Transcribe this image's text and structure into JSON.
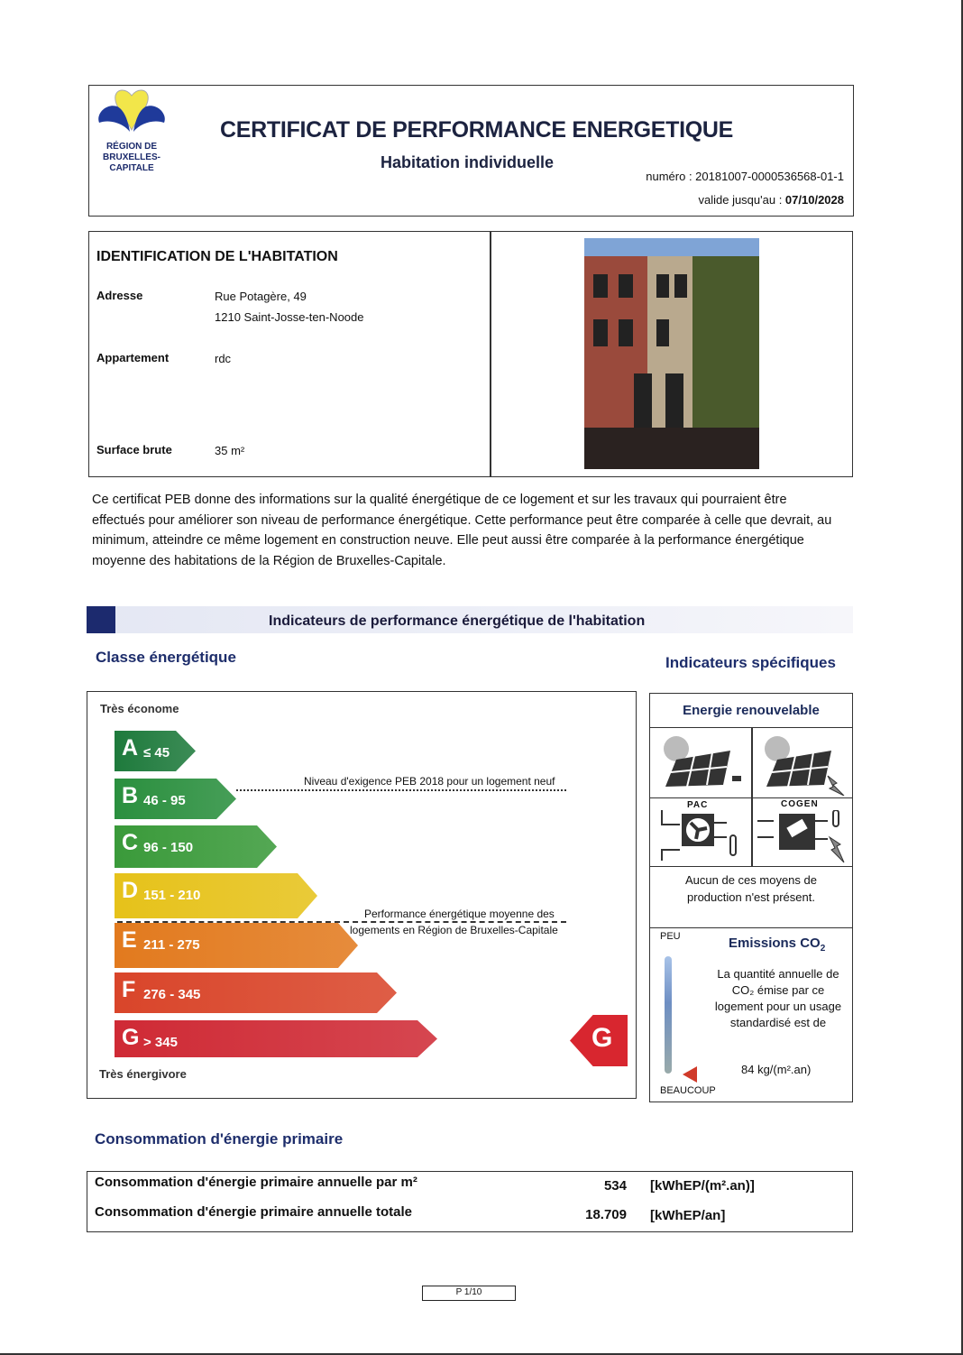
{
  "header": {
    "logo_text": [
      "RÉGION DE",
      "BRUXELLES-",
      "CAPITALE"
    ],
    "title": "CERTIFICAT DE PERFORMANCE ENERGETIQUE",
    "subtitle": "Habitation individuelle",
    "numero_label": "numéro : ",
    "numero": "20181007-0000536568-01-1",
    "valid_label": "valide jusqu'au : ",
    "valid_date": "07/10/2028"
  },
  "identification": {
    "title": "IDENTIFICATION DE L'HABITATION",
    "address_label": "Adresse",
    "address_line1": "Rue Potagère, 49",
    "address_line2": "1210 Saint-Josse-ten-Noode",
    "apartment_label": "Appartement",
    "apartment": "rdc",
    "surface_label": "Surface brute",
    "surface": "35 m²"
  },
  "intro": "Ce certificat PEB donne des informations sur la qualité énergétique de ce logement et sur les travaux qui pourraient être effectués pour améliorer son niveau de performance énergétique. Cette performance peut être comparée à celle que devrait, au minimum, atteindre ce même logement en construction neuve.  Elle peut aussi être comparée à la performance énergétique moyenne des habitations de la Région de Bruxelles-Capitale.",
  "indicators": {
    "band_title": "Indicateurs de performance énergétique de l'habitation",
    "class_title": "Classe énergétique",
    "specific_title": "Indicateurs spécifiques",
    "top_label": "Très économe",
    "bottom_label": "Très énergivore",
    "classes": [
      {
        "letter": "A",
        "range": "≤ 45",
        "color": "#1e7a3c"
      },
      {
        "letter": "B",
        "range": "46 - 95",
        "color": "#2a8f3e"
      },
      {
        "letter": "C",
        "range": "96 - 150",
        "color": "#3a9a3a"
      },
      {
        "letter": "D",
        "range": "151 - 210",
        "color": "#e6c21a"
      },
      {
        "letter": "E",
        "range": "211 - 275",
        "color": "#e27a1e"
      },
      {
        "letter": "F",
        "range": "276 - 345",
        "color": "#d9452a"
      },
      {
        "letter": "G",
        "range": "> 345",
        "color": "#cf2a35"
      }
    ],
    "requirement_note": "Niveau d'exigence PEB 2018 pour un logement neuf",
    "average_note_1": "Performance énergétique moyenne des",
    "average_note_2": "logements en Région de Bruxelles-Capitale",
    "current_class": "G",
    "current_color": "#d8262f"
  },
  "renewable": {
    "title": "Energie renouvelable",
    "pac_label": "PAC",
    "cogen_label": "COGEN",
    "status": "Aucun de ces moyens de production n'est présent."
  },
  "co2": {
    "top_label": "PEU",
    "bottom_label": "BEAUCOUP",
    "title": "Emissions CO",
    "title_sub": "2",
    "text": "La quantité annuelle de CO₂ émise par ce logement pour un usage standardisé est de",
    "value": "84 kg/(m².an)"
  },
  "consumption": {
    "title": "Consommation d'énergie primaire",
    "rows": [
      {
        "label": "Consommation d'énergie primaire annuelle par m²",
        "value": "534",
        "unit": "[kWhEP/(m².an)]"
      },
      {
        "label": "Consommation d'énergie primaire annuelle totale",
        "value": "18.709",
        "unit": "[kWhEP/an]"
      }
    ]
  },
  "footer": {
    "page": "P 1/10"
  }
}
